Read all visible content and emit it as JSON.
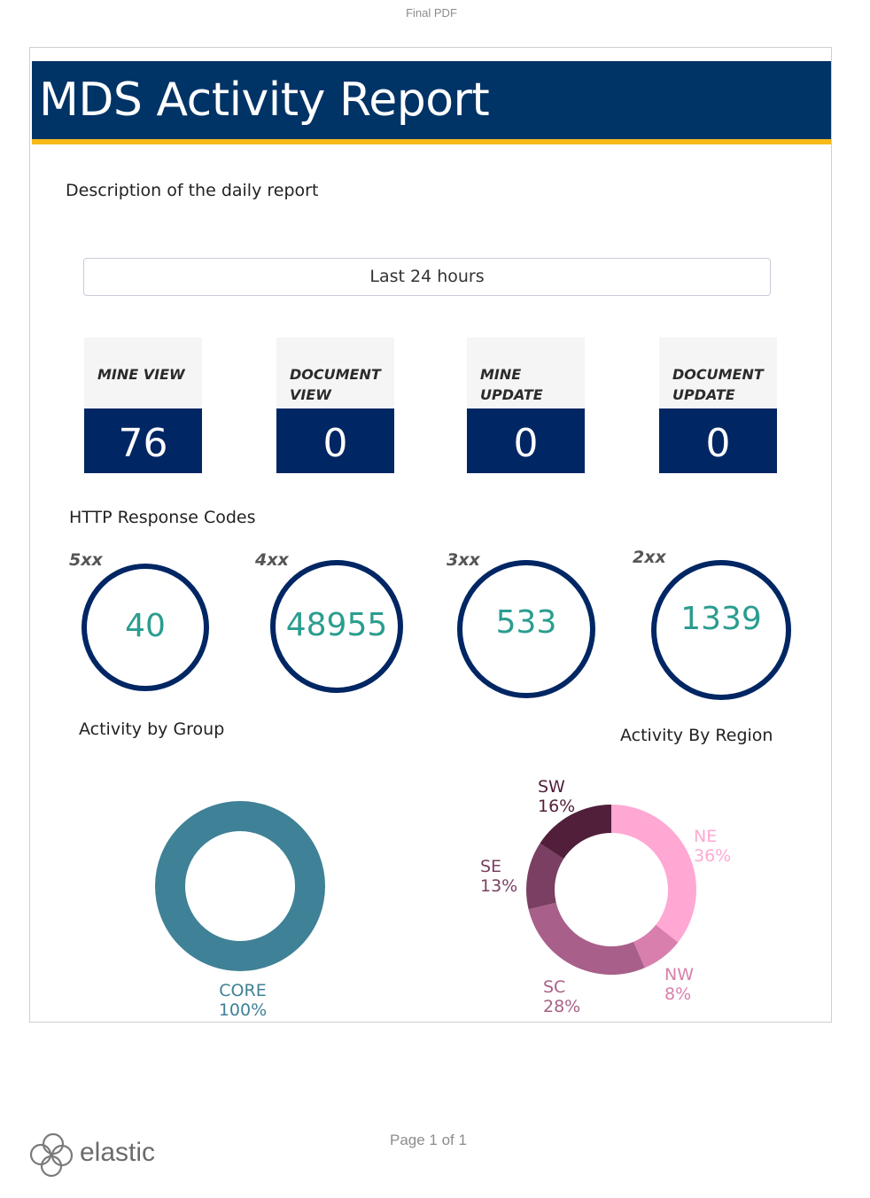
{
  "header": {
    "top_label": "Final PDF"
  },
  "report": {
    "title": "MDS Activity Report",
    "description": "Description of the daily report",
    "time_range": "Last 24 hours"
  },
  "metrics": [
    {
      "label": "MINE VIEW",
      "value": "76"
    },
    {
      "label": "DOCUMENT VIEW",
      "value": "0"
    },
    {
      "label": "MINE UPDATE",
      "value": "0"
    },
    {
      "label": "DOCUMENT UPDATE",
      "value": "0"
    }
  ],
  "http": {
    "title": "HTTP Response Codes",
    "codes": [
      {
        "label": "5xx",
        "value": "40"
      },
      {
        "label": "4xx",
        "value": "48955"
      },
      {
        "label": "3xx",
        "value": "533"
      },
      {
        "label": "2xx",
        "value": "1339"
      }
    ]
  },
  "colors": {
    "banner": "#003366",
    "banner_accent": "#f5b919",
    "metric_value_bg": "#002664",
    "gauge_ring": "#002664",
    "gauge_text": "#2a9d8f"
  },
  "chart_data": [
    {
      "type": "pie",
      "title": "Activity by Group",
      "donut": true,
      "slices": [
        {
          "label": "CORE",
          "value": 100,
          "percent_label": "100%",
          "color": "#3f8196"
        }
      ]
    },
    {
      "type": "pie",
      "title": "Activity By Region",
      "donut": true,
      "slices": [
        {
          "label": "NE",
          "value": 36,
          "percent_label": "36%",
          "color": "#ffa8d3"
        },
        {
          "label": "NW",
          "value": 8,
          "percent_label": "8%",
          "color": "#d87fad"
        },
        {
          "label": "SC",
          "value": 28,
          "percent_label": "28%",
          "color": "#a8608a"
        },
        {
          "label": "SE",
          "value": 13,
          "percent_label": "13%",
          "color": "#7a3f62"
        },
        {
          "label": "SW",
          "value": 16,
          "percent_label": "16%",
          "color": "#511f3a"
        }
      ]
    }
  ],
  "footer": {
    "page": "Page 1 of 1",
    "logo_text": "elastic"
  }
}
